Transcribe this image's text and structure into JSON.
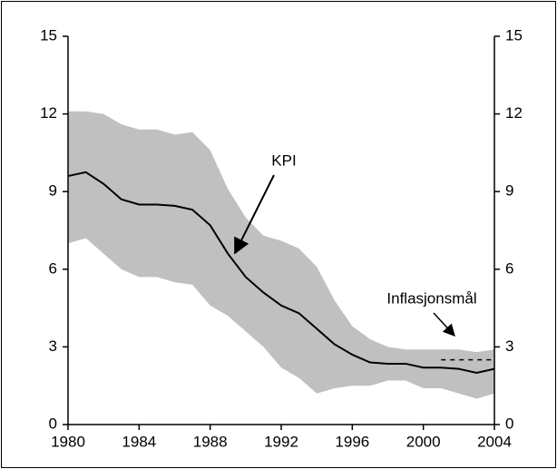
{
  "chart_data": {
    "type": "line",
    "x": [
      1980,
      1981,
      1982,
      1983,
      1984,
      1985,
      1986,
      1987,
      1988,
      1989,
      1990,
      1991,
      1992,
      1993,
      1994,
      1995,
      1996,
      1997,
      1998,
      1999,
      2000,
      2001,
      2002,
      2003,
      2004
    ],
    "series": [
      {
        "name": "KPI",
        "color": "#000000",
        "values": [
          9.6,
          9.75,
          9.3,
          8.7,
          8.5,
          8.5,
          8.45,
          8.3,
          7.7,
          6.6,
          5.7,
          5.1,
          4.6,
          4.3,
          3.7,
          3.1,
          2.7,
          2.4,
          2.35,
          2.35,
          2.2,
          2.2,
          2.15,
          2.0,
          2.15
        ]
      }
    ],
    "band": {
      "color": "#c0c0c0",
      "upper": [
        12.1,
        12.1,
        12.0,
        11.6,
        11.4,
        11.4,
        11.2,
        11.3,
        10.6,
        9.1,
        8.0,
        7.3,
        7.1,
        6.8,
        6.1,
        4.8,
        3.8,
        3.3,
        3.0,
        2.9,
        2.9,
        2.9,
        2.9,
        2.8,
        2.9
      ],
      "lower": [
        7.0,
        7.2,
        6.6,
        6.0,
        5.7,
        5.7,
        5.5,
        5.4,
        4.6,
        4.2,
        3.6,
        3.0,
        2.2,
        1.8,
        1.2,
        1.4,
        1.5,
        1.5,
        1.7,
        1.7,
        1.4,
        1.4,
        1.2,
        1.0,
        1.2
      ]
    },
    "target": {
      "label": "Inflasjonsmål",
      "x": [
        2001,
        2004
      ],
      "values": [
        2.5,
        2.5
      ]
    },
    "xlim": [
      1980,
      2004
    ],
    "xticks": [
      1980,
      1984,
      1988,
      1992,
      1996,
      2000,
      2004
    ],
    "ylim": [
      0,
      15
    ],
    "yticks": [
      0,
      3,
      6,
      9,
      12,
      15
    ],
    "y2lim": [
      0,
      15
    ],
    "y2ticks": [
      0,
      3,
      6,
      9,
      12,
      15
    ],
    "grid": false
  }
}
